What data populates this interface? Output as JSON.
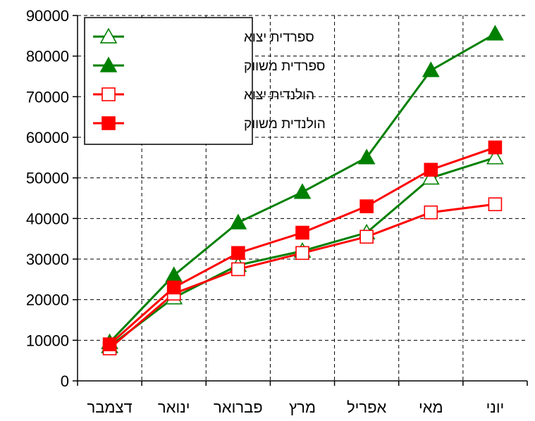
{
  "chart_data": {
    "type": "line",
    "title": "",
    "xlabel": "",
    "ylabel": "",
    "categories": [
      "דצמבר",
      "ינואר",
      "פברואר",
      "מרץ",
      "אפריל",
      "מאי",
      "יוני"
    ],
    "ylim": [
      0,
      90000
    ],
    "yticks": [
      "0",
      "10000",
      "20000",
      "30000",
      "40000",
      "50000",
      "60000",
      "70000",
      "80000",
      "90000"
    ],
    "grid": "dashed vertical and horizontal",
    "legend_position": "top-left",
    "series": [
      {
        "name": "ספרדית יצוא",
        "color": "#008000",
        "marker": "triangle-open",
        "values": [
          8500,
          20500,
          28500,
          32000,
          36500,
          50000,
          55000
        ]
      },
      {
        "name": "ספרדית משווק",
        "color": "#008000",
        "marker": "triangle-filled",
        "values": [
          9500,
          26000,
          39000,
          46500,
          55000,
          76500,
          85500
        ]
      },
      {
        "name": "הולנדית יצוא",
        "color": "#ff0000",
        "marker": "square-open",
        "values": [
          8000,
          21500,
          27500,
          31500,
          35500,
          41500,
          43500
        ]
      },
      {
        "name": "הולנדית משווק",
        "color": "#ff0000",
        "marker": "square-filled",
        "values": [
          9000,
          23000,
          31500,
          36500,
          43000,
          52000,
          57500
        ]
      }
    ]
  }
}
